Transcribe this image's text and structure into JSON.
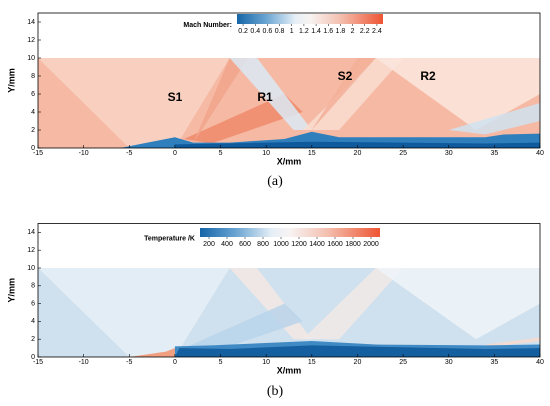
{
  "panels": [
    {
      "xlabel": "X/mm",
      "ylabel": "Y/mm",
      "xlim": [
        -15,
        40
      ],
      "ylim": [
        0,
        15
      ],
      "xticks": [
        -15,
        -10,
        -5,
        0,
        5,
        10,
        15,
        20,
        25,
        30,
        35,
        40
      ],
      "yticks": [
        0,
        2,
        4,
        6,
        8,
        10,
        12,
        14
      ],
      "colorbar": {
        "label": "Mach Number:",
        "lim": [
          0.1,
          2.5
        ],
        "ticks": [
          0.2,
          0.4,
          0.6,
          0.8,
          1,
          1.2,
          1.4,
          1.6,
          1.8,
          2,
          2.2,
          2.4
        ]
      },
      "annotations": [
        "S1",
        "R1",
        "S2",
        "R2"
      ],
      "caption": "(a)"
    },
    {
      "xlabel": "X/mm",
      "ylabel": "Y/mm",
      "xlim": [
        -15,
        40
      ],
      "ylim": [
        0,
        15
      ],
      "xticks": [
        -15,
        -10,
        -5,
        0,
        5,
        10,
        15,
        20,
        25,
        30,
        35,
        40
      ],
      "yticks": [
        0,
        2,
        4,
        6,
        8,
        10,
        12,
        14
      ],
      "colorbar": {
        "label": "Temperature /K",
        "lim": [
          100,
          2100
        ],
        "ticks": [
          200,
          400,
          600,
          800,
          1000,
          1200,
          1400,
          1600,
          1800,
          2000
        ]
      },
      "caption": "(b)"
    }
  ]
}
